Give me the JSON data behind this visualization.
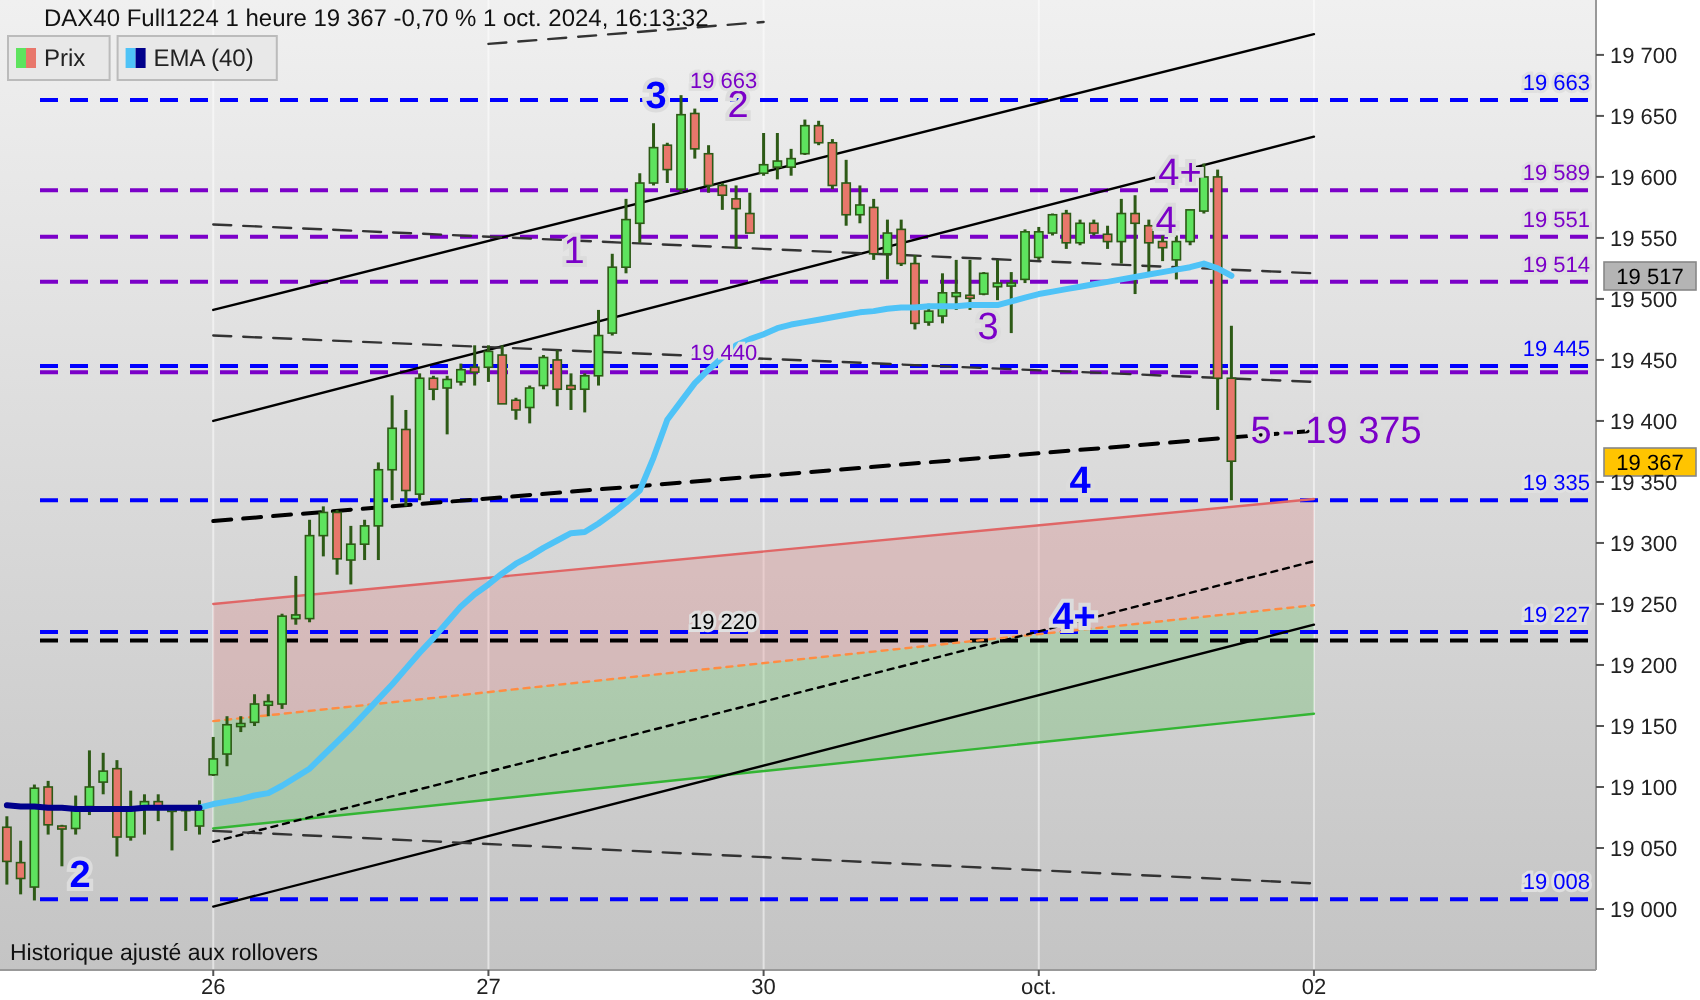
{
  "chart_data": {
    "type": "candlestick",
    "title": "DAX40 Full1224 1 heure 19 367 -0,70 % 1 oct. 2024, 16:13:32",
    "categories": [
      null,
      null,
      null,
      null,
      null,
      null,
      null,
      null,
      null,
      null,
      null,
      null,
      null,
      null,
      null,
      "26",
      null,
      null,
      null,
      null,
      null,
      null,
      null,
      null,
      null,
      null,
      null,
      null,
      null,
      null,
      null,
      null,
      null,
      null,
      null,
      "27",
      null,
      null,
      null,
      null,
      null,
      null,
      null,
      null,
      null,
      null,
      null,
      null,
      null,
      null,
      null,
      null,
      null,
      null,
      null,
      "30",
      null,
      null,
      null,
      null,
      null,
      null,
      null,
      null,
      null,
      null,
      null,
      null,
      null,
      null,
      null,
      null,
      null,
      null,
      null,
      "oct.",
      null,
      null,
      null,
      null,
      null,
      null,
      null,
      null,
      null,
      null,
      null,
      null,
      null,
      null,
      null,
      null,
      null,
      null,
      null,
      "02",
      null,
      null,
      null,
      null,
      null,
      null,
      null,
      null,
      null,
      null,
      null,
      null,
      null,
      null,
      null,
      null,
      null,
      null,
      null,
      null
    ],
    "ylim": [
      18950,
      19745
    ],
    "yticks": [
      {
        "value": 19000,
        "label": "19 000"
      },
      {
        "value": 19050,
        "label": "19 050"
      },
      {
        "value": 19100,
        "label": "19 100"
      },
      {
        "value": 19150,
        "label": "19 150"
      },
      {
        "value": 19200,
        "label": "19 200"
      },
      {
        "value": 19250,
        "label": "19 250"
      },
      {
        "value": 19300,
        "label": "19 300"
      },
      {
        "value": 19350,
        "label": "19 350"
      },
      {
        "value": 19400,
        "label": "19 400"
      },
      {
        "value": 19450,
        "label": "19 450"
      },
      {
        "value": 19500,
        "label": "19 500"
      },
      {
        "value": 19550,
        "label": "19 550"
      },
      {
        "value": 19600,
        "label": "19 600"
      },
      {
        "value": 19650,
        "label": "19 650"
      },
      {
        "value": 19700,
        "label": "19 700"
      }
    ],
    "legend": "top left",
    "grid": "x",
    "series": [
      {
        "type": "line",
        "color": "#e06666",
        "x": [
          "26",
          "02"
        ],
        "values": [
          19250,
          19336
        ],
        "lower": [
          19154,
          19249
        ],
        "upper": [
          19250,
          19336
        ]
      },
      {
        "type": "line",
        "color": "#33b533",
        "x": [
          "26",
          "02"
        ],
        "values": [
          19066,
          19160
        ],
        "lower": [
          19066,
          19160
        ],
        "upper": [
          19154,
          19249
        ]
      },
      {
        "type": "line",
        "color": "#ff8c42",
        "line_style": "dotted",
        "x": [
          "26",
          "02"
        ],
        "values": [
          19154,
          19249
        ]
      },
      {
        "type": "line",
        "color": "#000000",
        "line_style": "dotted",
        "x": [
          "26",
          "02"
        ],
        "values": [
          19055,
          19285
        ]
      },
      {
        "type": "line",
        "color": "#000000",
        "x": [
          "26",
          "02"
        ],
        "values": [
          19002,
          19233
        ]
      },
      {
        "type": "line",
        "color": "#000000",
        "line_style": "dashed",
        "x": [
          "26",
          "02"
        ],
        "values": [
          19318,
          19392
        ]
      },
      {
        "type": "line",
        "color": "#000000",
        "x": [
          "26",
          "02"
        ],
        "values": [
          19491,
          19717
        ]
      },
      {
        "type": "line",
        "color": "#000000",
        "x": [
          "26",
          "02"
        ],
        "values": [
          19400,
          19633
        ]
      },
      {
        "type": "line",
        "color": "#333333",
        "line_style": "dashed",
        "x": [
          "27",
          "30"
        ],
        "values": [
          19709,
          19727
        ]
      },
      {
        "type": "line",
        "color": "#333333",
        "line_style": "dashed",
        "x": [
          "26",
          "02"
        ],
        "values": [
          19561,
          19521
        ]
      },
      {
        "type": "line",
        "color": "#333333",
        "line_style": "dashed",
        "x": [
          "26",
          "02"
        ],
        "values": [
          19470,
          19432
        ]
      },
      {
        "type": "line",
        "color": "#333333",
        "line_style": "dashed",
        "x": [
          "26",
          "02"
        ],
        "values": [
          19064,
          19021
        ]
      },
      {
        "type": "candlestick",
        "name": "Prix",
        "ohlc": [
          [
            19067,
            19076,
            19020,
            19039
          ],
          [
            19038,
            19056,
            19012,
            19025
          ],
          [
            19018,
            19102,
            19007,
            19099
          ],
          [
            19100,
            19105,
            19061,
            19069
          ],
          [
            19068,
            19069,
            19035,
            19066
          ],
          [
            19066,
            19093,
            19061,
            19081
          ],
          [
            19084,
            19130,
            19077,
            19100
          ],
          [
            19104,
            19128,
            19094,
            19113
          ],
          [
            19115,
            19122,
            19043,
            19059
          ],
          [
            19059,
            19097,
            19056,
            19081
          ],
          [
            19083,
            19094,
            19061,
            19088
          ],
          [
            19088,
            19094,
            19072,
            19083
          ],
          [
            19080,
            19084,
            19048,
            19084
          ],
          [
            19081,
            19084,
            19064,
            19083
          ],
          [
            19068,
            19089,
            19061,
            19081
          ],
          [
            19110,
            19141,
            19109,
            19123
          ],
          [
            19127,
            19158,
            19117,
            19151
          ],
          [
            19150,
            19158,
            19145,
            19152
          ],
          [
            19153,
            19176,
            19150,
            19168
          ],
          [
            19167,
            19176,
            19158,
            19170
          ],
          [
            19168,
            19242,
            19164,
            19240
          ],
          [
            19238,
            19273,
            19233,
            19241
          ],
          [
            19238,
            19319,
            19235,
            19306
          ],
          [
            19306,
            19330,
            19289,
            19325
          ],
          [
            19325,
            19327,
            19274,
            19287
          ],
          [
            19286,
            19314,
            19266,
            19299
          ],
          [
            19299,
            19319,
            19286,
            19314
          ],
          [
            19314,
            19366,
            19286,
            19360
          ],
          [
            19360,
            19421,
            19335,
            19394
          ],
          [
            19393,
            19409,
            19330,
            19343
          ],
          [
            19340,
            19439,
            19335,
            19435
          ],
          [
            19435,
            19437,
            19417,
            19426
          ],
          [
            19427,
            19437,
            19389,
            19434
          ],
          [
            19432,
            19447,
            19429,
            19442
          ],
          [
            19444,
            19462,
            19429,
            19440
          ],
          [
            19444,
            19462,
            19432,
            19457
          ],
          [
            19454,
            19462,
            19414,
            19414
          ],
          [
            19417,
            19419,
            19401,
            19409
          ],
          [
            19411,
            19429,
            19398,
            19427
          ],
          [
            19429,
            19454,
            19426,
            19452
          ],
          [
            19450,
            19458,
            19412,
            19426
          ],
          [
            19429,
            19439,
            19409,
            19426
          ],
          [
            19426,
            19439,
            19407,
            19437
          ],
          [
            19437,
            19491,
            19429,
            19470
          ],
          [
            19472,
            19537,
            19470,
            19526
          ],
          [
            19526,
            19582,
            19521,
            19565
          ],
          [
            19562,
            19603,
            19546,
            19595
          ],
          [
            19595,
            19644,
            19593,
            19624
          ],
          [
            19626,
            19628,
            19595,
            19606
          ],
          [
            19590,
            19667,
            19587,
            19651
          ],
          [
            19652,
            19656,
            19615,
            19623
          ],
          [
            19619,
            19626,
            19587,
            19593
          ],
          [
            19593,
            19595,
            19573,
            19585
          ],
          [
            19582,
            19593,
            19541,
            19574
          ],
          [
            19570,
            19587,
            19554,
            19554
          ],
          [
            19603,
            19636,
            19601,
            19610
          ],
          [
            19608,
            19636,
            19598,
            19613
          ],
          [
            19608,
            19623,
            19601,
            19615
          ],
          [
            19619,
            19647,
            19618,
            19642
          ],
          [
            19642,
            19646,
            19626,
            19628
          ],
          [
            19628,
            19631,
            19590,
            19593
          ],
          [
            19595,
            19614,
            19560,
            19569
          ],
          [
            19569,
            19593,
            19562,
            19577
          ],
          [
            19575,
            19582,
            19532,
            19537
          ],
          [
            19537,
            19565,
            19516,
            19554
          ],
          [
            19557,
            19565,
            19527,
            19529
          ],
          [
            19529,
            19536,
            19475,
            19480
          ],
          [
            19481,
            19496,
            19478,
            19490
          ],
          [
            19486,
            19521,
            19480,
            19505
          ],
          [
            19502,
            19532,
            19491,
            19505
          ],
          [
            19503,
            19532,
            19491,
            19502
          ],
          [
            19504,
            19522,
            19503,
            19521
          ],
          [
            19510,
            19532,
            19499,
            19513
          ],
          [
            19511,
            19522,
            19472,
            19513
          ],
          [
            19516,
            19557,
            19513,
            19555
          ],
          [
            19534,
            19559,
            19532,
            19555
          ],
          [
            19554,
            19570,
            19552,
            19569
          ],
          [
            19570,
            19573,
            19541,
            19546
          ],
          [
            19546,
            19565,
            19544,
            19562
          ],
          [
            19562,
            19565,
            19552,
            19554
          ],
          [
            19553,
            19560,
            19541,
            19547
          ],
          [
            19547,
            19582,
            19529,
            19570
          ],
          [
            19570,
            19585,
            19504,
            19562
          ],
          [
            19560,
            19565,
            19521,
            19546
          ],
          [
            19547,
            19552,
            19531,
            19542
          ],
          [
            19532,
            19552,
            19516,
            19547
          ],
          [
            19547,
            19573,
            19544,
            19573
          ],
          [
            19572,
            19611,
            19570,
            19600
          ],
          [
            19600,
            19606,
            19409,
            19435
          ],
          [
            19435,
            19478,
            19335,
            19367
          ],
          null,
          null,
          null,
          null,
          null,
          null,
          null,
          null,
          null,
          null,
          null,
          null,
          null,
          null,
          null,
          null,
          null,
          null,
          null,
          null,
          null,
          null,
          null,
          null,
          null,
          null
        ]
      },
      {
        "type": "line",
        "name": "EMA (40)",
        "color": "#4fc3f7",
        "values": [
          null,
          null,
          null,
          null,
          null,
          null,
          null,
          null,
          null,
          null,
          null,
          null,
          null,
          null,
          19083,
          19086,
          19088,
          19090,
          19093,
          19095,
          19101,
          19108,
          19115,
          19126,
          19137,
          19148,
          19160,
          19172,
          19184,
          19197,
          19210,
          19222,
          19235,
          19248,
          19258,
          19266,
          19275,
          19283,
          19289,
          19296,
          19302,
          19308,
          19309,
          19316,
          19324,
          19333,
          19343,
          19370,
          19401,
          19416,
          19431,
          19442,
          19452,
          19462,
          19467,
          19471,
          19476,
          19479,
          19481,
          19483,
          19485,
          19487,
          19489,
          19490,
          19492,
          19493,
          19493,
          19494,
          19494,
          19494,
          19495,
          19495,
          19495,
          19498,
          19501,
          19504,
          19506,
          19508,
          19510,
          19512,
          19514,
          19516,
          19518,
          19520,
          19522,
          19524,
          19526,
          19529,
          19525,
          19519,
          null,
          null,
          null,
          null,
          null,
          null,
          null,
          null,
          null,
          null,
          null,
          null,
          null,
          null,
          null,
          null,
          null,
          null,
          null,
          null,
          null,
          null,
          null,
          null,
          null,
          null
        ]
      },
      {
        "type": "line",
        "color": "#00008b",
        "values": [
          19085,
          19084,
          19084,
          19083,
          19083,
          19082,
          19082,
          19082,
          19082,
          19082,
          19083,
          19083,
          19083,
          19083,
          19083,
          null,
          null,
          null,
          null,
          null,
          null,
          null,
          null,
          null,
          null,
          null,
          null,
          null,
          null,
          null,
          null,
          null,
          null,
          null,
          null,
          null,
          null,
          null,
          null,
          null,
          null,
          null,
          null,
          null,
          null,
          null,
          null,
          null,
          null,
          null,
          null,
          null,
          null,
          null,
          null,
          null,
          null,
          null,
          null,
          null,
          null,
          null,
          null,
          null,
          null,
          null,
          null,
          null,
          null,
          null,
          null,
          null,
          null,
          null,
          null,
          null,
          null,
          null,
          null,
          null,
          null,
          null,
          null,
          null,
          null,
          null,
          null,
          null,
          null,
          null,
          null,
          null,
          null,
          null,
          null,
          null,
          null,
          null,
          null,
          null,
          null,
          null,
          null,
          null,
          null,
          null,
          null,
          null,
          null,
          null,
          null,
          null,
          null,
          null,
          null,
          null
        ]
      }
    ],
    "ref_lines": [
      {
        "axis": "y",
        "value": 19663,
        "label": "19 663",
        "color": "#0000ff",
        "line_style": "dashed"
      },
      {
        "axis": "y",
        "value": 19589,
        "label": "19 589",
        "color": "#7b00c8",
        "line_style": "dashed"
      },
      {
        "axis": "y",
        "value": 19551,
        "label": "19 551",
        "color": "#7b00c8",
        "line_style": "dashed"
      },
      {
        "axis": "y",
        "value": 19514,
        "label": "19 514",
        "color": "#7b00c8",
        "line_style": "dashed"
      },
      {
        "axis": "y",
        "value": 19445,
        "label": "19 445",
        "color": "#0000ff",
        "line_style": "dashed"
      },
      {
        "axis": "y",
        "value": 19440,
        "label": "19 440",
        "color": "#7b00c8",
        "line_style": "dashed"
      },
      {
        "axis": "y",
        "value": 19335,
        "label": "19 335",
        "color": "#0000ff",
        "line_style": "dashed"
      },
      {
        "axis": "y",
        "value": 19227,
        "label": "19 227",
        "color": "#0000ff",
        "line_style": "dashed"
      },
      {
        "axis": "y",
        "value": 19220,
        "label": "19 220",
        "color": "#000000",
        "line_style": "dashed"
      },
      {
        "axis": "y",
        "value": 19008,
        "label": "19 008",
        "color": "#0000ff",
        "line_style": "dashed"
      }
    ],
    "annotations": [
      "1",
      "2",
      "3",
      "4",
      "4+",
      "5 - 19 375",
      "2",
      {
        "text": "3",
        "y": 19667
      },
      "4",
      "4+",
      "19 517",
      "19 367",
      "19 663",
      "Historique ajusté aux rollovers"
    ]
  }
}
